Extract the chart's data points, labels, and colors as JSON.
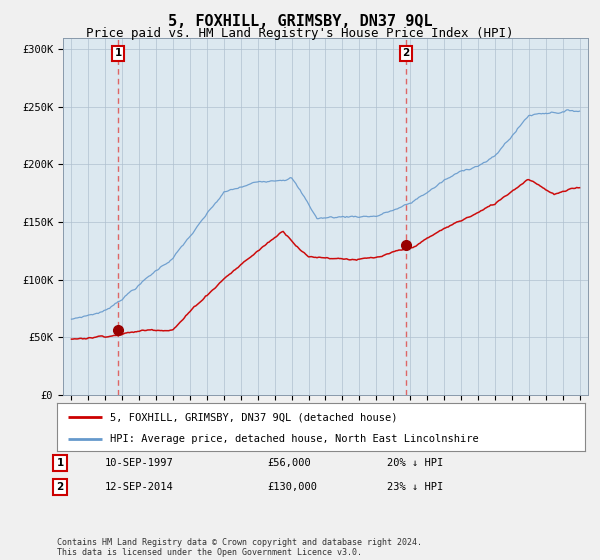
{
  "title": "5, FOXHILL, GRIMSBY, DN37 9QL",
  "subtitle": "Price paid vs. HM Land Registry's House Price Index (HPI)",
  "title_fontsize": 11,
  "subtitle_fontsize": 9,
  "sale1_date_label": "10-SEP-1997",
  "sale1_price": 56000,
  "sale1_label": "£56,000",
  "sale1_hpi_note": "20% ↓ HPI",
  "sale1_year": 1997.75,
  "sale2_date_label": "12-SEP-2014",
  "sale2_price": 130000,
  "sale2_label": "£130,000",
  "sale2_hpi_note": "23% ↓ HPI",
  "sale2_year": 2014.75,
  "red_line_color": "#cc0000",
  "blue_line_color": "#6699cc",
  "vline_color": "#dd6666",
  "dot_color": "#990000",
  "bg_color": "#e8eef5",
  "plot_bg_color": "#dce8f0",
  "outer_bg_color": "#f0f0f0",
  "grid_color": "#b0c0d0",
  "yticks": [
    0,
    50000,
    100000,
    150000,
    200000,
    250000,
    300000
  ],
  "ytick_labels": [
    "£0",
    "£50K",
    "£100K",
    "£150K",
    "£200K",
    "£250K",
    "£300K"
  ],
  "xmin": 1994.5,
  "xmax": 2025.5,
  "ymin": 0,
  "ymax": 310000,
  "legend_red_label": "5, FOXHILL, GRIMSBY, DN37 9QL (detached house)",
  "legend_blue_label": "HPI: Average price, detached house, North East Lincolnshire",
  "footer": "Contains HM Land Registry data © Crown copyright and database right 2024.\nThis data is licensed under the Open Government Licence v3.0."
}
